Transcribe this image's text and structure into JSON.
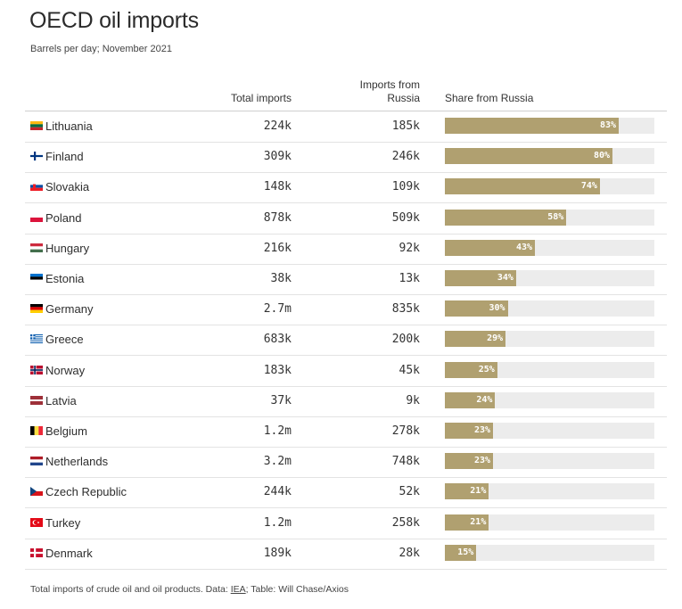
{
  "title": "OECD oil imports",
  "subtitle": "Barrels per day; November 2021",
  "headers": {
    "total": "Total imports",
    "imports_line1": "Imports from",
    "imports_line2": "Russia",
    "share": "Share from Russia"
  },
  "footer": {
    "prefix": "Total imports of crude oil and oil products. Data: ",
    "link": "IEA",
    "suffix": "; Table: Will Chase/Axios"
  },
  "colors": {
    "bar": "#b0a070",
    "track": "#ececec"
  },
  "chart_data": {
    "type": "table",
    "title": "OECD oil imports",
    "subtitle": "Barrels per day; November 2021",
    "columns": [
      "Total imports",
      "Imports from Russia",
      "Share from Russia"
    ],
    "rows": [
      {
        "country": "Lithuania",
        "flag": "lithuania-flag-icon",
        "total": "224k",
        "russia": "185k",
        "share_label": "83%",
        "share": 83
      },
      {
        "country": "Finland",
        "flag": "finland-flag-icon",
        "total": "309k",
        "russia": "246k",
        "share_label": "80%",
        "share": 80
      },
      {
        "country": "Slovakia",
        "flag": "slovakia-flag-icon",
        "total": "148k",
        "russia": "109k",
        "share_label": "74%",
        "share": 74
      },
      {
        "country": "Poland",
        "flag": "poland-flag-icon",
        "total": "878k",
        "russia": "509k",
        "share_label": "58%",
        "share": 58
      },
      {
        "country": "Hungary",
        "flag": "hungary-flag-icon",
        "total": "216k",
        "russia": "92k",
        "share_label": "43%",
        "share": 43
      },
      {
        "country": "Estonia",
        "flag": "estonia-flag-icon",
        "total": "38k",
        "russia": "13k",
        "share_label": "34%",
        "share": 34
      },
      {
        "country": "Germany",
        "flag": "germany-flag-icon",
        "total": "2.7m",
        "russia": "835k",
        "share_label": "30%",
        "share": 30
      },
      {
        "country": "Greece",
        "flag": "greece-flag-icon",
        "total": "683k",
        "russia": "200k",
        "share_label": "29%",
        "share": 29
      },
      {
        "country": "Norway",
        "flag": "norway-flag-icon",
        "total": "183k",
        "russia": "45k",
        "share_label": "25%",
        "share": 25
      },
      {
        "country": "Latvia",
        "flag": "latvia-flag-icon",
        "total": "37k",
        "russia": "9k",
        "share_label": "24%",
        "share": 24
      },
      {
        "country": "Belgium",
        "flag": "belgium-flag-icon",
        "total": "1.2m",
        "russia": "278k",
        "share_label": "23%",
        "share": 23
      },
      {
        "country": "Netherlands",
        "flag": "netherlands-flag-icon",
        "total": "3.2m",
        "russia": "748k",
        "share_label": "23%",
        "share": 23
      },
      {
        "country": "Czech Republic",
        "flag": "czech-republic-flag-icon",
        "total": "244k",
        "russia": "52k",
        "share_label": "21%",
        "share": 21
      },
      {
        "country": "Turkey",
        "flag": "turkey-flag-icon",
        "total": "1.2m",
        "russia": "258k",
        "share_label": "21%",
        "share": 21
      },
      {
        "country": "Denmark",
        "flag": "denmark-flag-icon",
        "total": "189k",
        "russia": "28k",
        "share_label": "15%",
        "share": 15
      }
    ]
  }
}
